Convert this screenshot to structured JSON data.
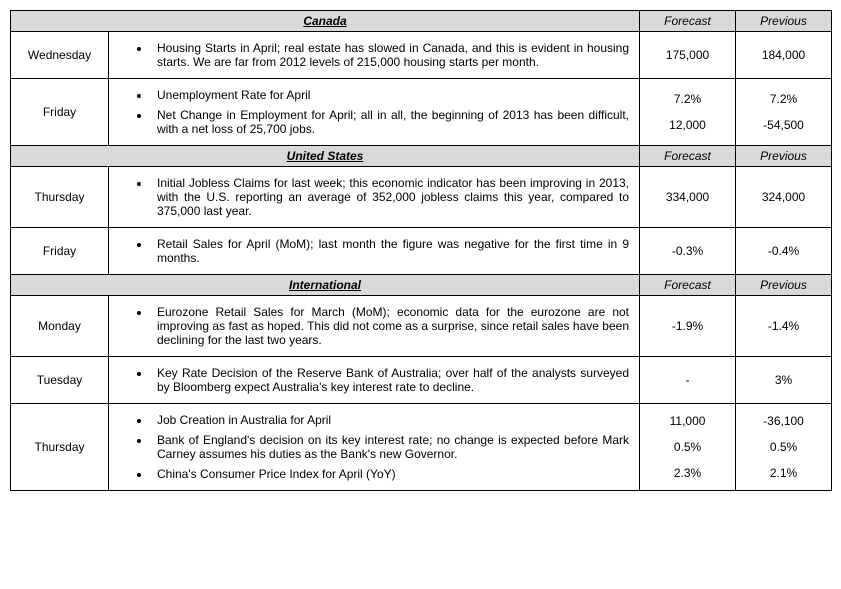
{
  "sections": [
    {
      "region": "Canada",
      "forecast_label": "Forecast",
      "previous_label": "Previous",
      "rows": [
        {
          "day": "Wednesday",
          "items": [
            "Housing Starts in April; real estate has slowed in Canada, and this is evident in housing starts. We are far from 2012 levels of 215,000 housing starts per month."
          ],
          "forecast": [
            "175,000"
          ],
          "previous": [
            "184,000"
          ]
        },
        {
          "day": "Friday",
          "items": [
            "Unemployment Rate for April",
            "Net Change in Employment for April; all in all, the beginning of 2013 has been difficult, with a net loss of 25,700 jobs."
          ],
          "forecast": [
            "7.2%",
            "12,000"
          ],
          "previous": [
            "7.2%",
            "-54,500"
          ]
        }
      ]
    },
    {
      "region": "United States",
      "forecast_label": "Forecast",
      "previous_label": "Previous",
      "rows": [
        {
          "day": "Thursday",
          "items": [
            "Initial Jobless Claims for last week; this economic indicator has been improving in 2013, with the U.S. reporting an average of 352,000 jobless claims this year, compared to 375,000 last year."
          ],
          "forecast": [
            "334,000"
          ],
          "previous": [
            "324,000"
          ]
        },
        {
          "day": "Friday",
          "items": [
            "Retail Sales for April (MoM); last month the figure was negative for the first time in 9 months."
          ],
          "forecast": [
            "-0.3%"
          ],
          "previous": [
            "-0.4%"
          ]
        }
      ]
    },
    {
      "region": "International",
      "forecast_label": "Forecast",
      "previous_label": "Previous",
      "rows": [
        {
          "day": "Monday",
          "items": [
            "Eurozone Retail Sales for March (MoM); economic data for the eurozone are not improving as fast as hoped. This did not come as a surprise, since retail sales have been declining for the last two years."
          ],
          "forecast": [
            "-1.9%"
          ],
          "previous": [
            "-1.4%"
          ]
        },
        {
          "day": "Tuesday",
          "items": [
            "Key Rate Decision of the Reserve Bank of Australia; over half of the analysts surveyed by Bloomberg expect Australia's key interest rate to decline."
          ],
          "forecast": [
            "-"
          ],
          "previous": [
            "3%"
          ]
        },
        {
          "day": "Thursday",
          "items": [
            "Job Creation in Australia for April",
            "Bank of England's decision on its key interest rate; no change is expected before Mark Carney assumes his duties as the Bank's new Governor.",
            "China's Consumer Price Index for April (YoY)"
          ],
          "forecast": [
            "11,000",
            "0.5%",
            "2.3%"
          ],
          "previous": [
            "-36,100",
            "0.5%",
            "2.1%"
          ]
        }
      ]
    }
  ]
}
